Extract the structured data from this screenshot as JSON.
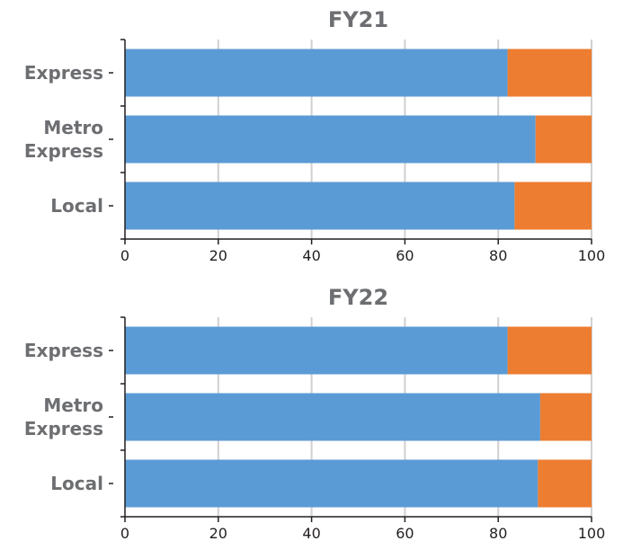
{
  "chart_data": [
    {
      "type": "bar",
      "orientation": "horizontal",
      "stacked": true,
      "title": "FY21",
      "categories": [
        [
          "Express"
        ],
        [
          "Metro",
          "Express"
        ],
        [
          "Local"
        ]
      ],
      "series": [
        {
          "values": [
            82,
            88,
            83.5
          ],
          "color": "#5b9bd5"
        },
        {
          "values": [
            18,
            12,
            16.5
          ],
          "color": "#ed7d31"
        }
      ],
      "xlim": [
        0,
        100
      ],
      "xticks": [
        0,
        20,
        40,
        60,
        80,
        100
      ],
      "grid": true,
      "legend": "none"
    },
    {
      "type": "bar",
      "orientation": "horizontal",
      "stacked": true,
      "title": "FY22",
      "categories": [
        [
          "Express"
        ],
        [
          "Metro",
          "Express"
        ],
        [
          "Local"
        ]
      ],
      "series": [
        {
          "values": [
            82,
            89,
            88.5
          ],
          "color": "#5b9bd5"
        },
        {
          "values": [
            18,
            11,
            11.5
          ],
          "color": "#ed7d31"
        }
      ],
      "xlim": [
        0,
        100
      ],
      "xticks": [
        0,
        20,
        40,
        60,
        80,
        100
      ],
      "grid": true,
      "legend": "none"
    }
  ]
}
